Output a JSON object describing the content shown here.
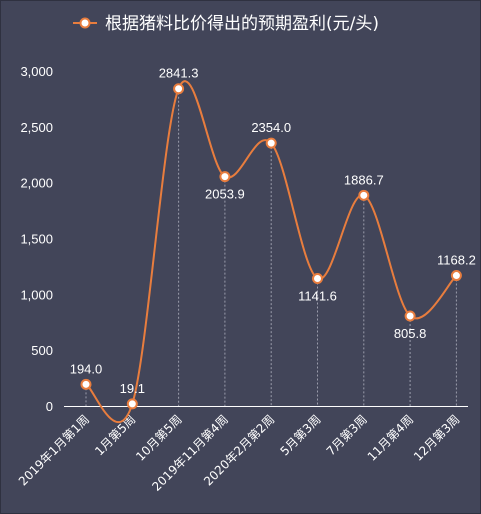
{
  "chart_data": {
    "type": "line",
    "title": "",
    "xlabel": "",
    "ylabel": "",
    "categories": [
      "2019年1月第1周",
      "1月第5周",
      "10月第5周",
      "2019年11月第4周",
      "2020年2月第2周",
      "5月第3周",
      "7月第3周",
      "11月第4周",
      "12月第3周"
    ],
    "series": [
      {
        "name": "根据猪料比价得出的预期盈利(元/头)",
        "values": [
          194.0,
          19.1,
          2841.3,
          2053.9,
          2354.0,
          1141.6,
          1886.7,
          805.8,
          1168.2
        ],
        "value_labels": [
          "194.0",
          "19.1",
          "2841.3",
          "2053.9",
          "2354.0",
          "1141.6",
          "1886.7",
          "805.8",
          "1168.2"
        ],
        "color": "#e87d3e"
      }
    ],
    "ylim": [
      0,
      3000
    ],
    "yticks": [
      0,
      500,
      1000,
      1500,
      2000,
      2500,
      3000
    ],
    "ytick_labels": [
      "0",
      "500",
      "1,000",
      "1,500",
      "2,000",
      "2,500",
      "3,000"
    ],
    "legend_position": "top-center",
    "smooth": true,
    "drop_lines": true,
    "grid": false
  },
  "colors": {
    "background": "#424559",
    "line": "#e87d3e",
    "text": "#ffffff",
    "drop_line": "#9a9cab"
  }
}
